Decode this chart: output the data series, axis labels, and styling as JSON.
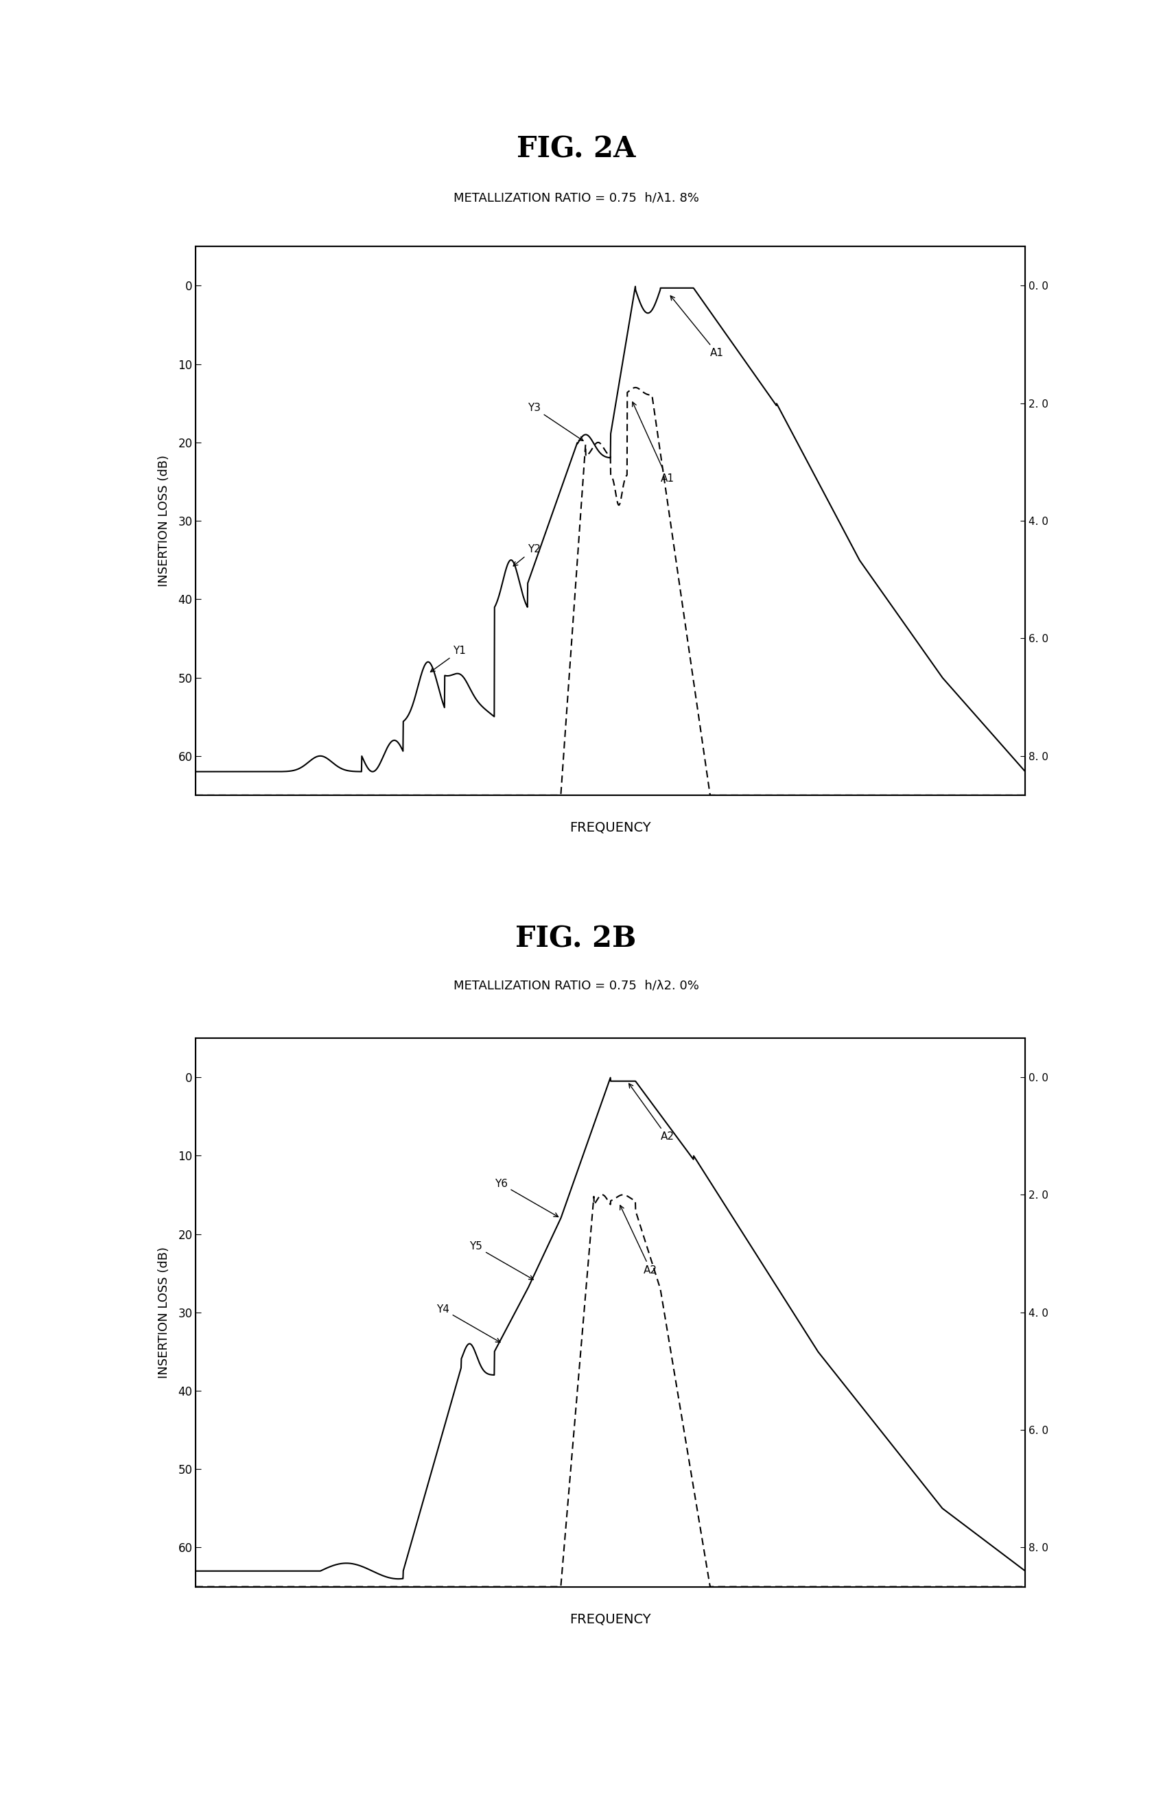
{
  "fig2a_title": "FIG. 2A",
  "fig2b_title": "FIG. 2B",
  "fig2a_subtitle": "METALLIZATION RATIO = 0.75  h/λ1. 8%",
  "fig2b_subtitle": "METALLIZATION RATIO = 0.75  h/λ2. 0%",
  "ylabel": "INSERTION LOSS (dB)",
  "xlabel": "FREQUENCY",
  "yticks_left": [
    0,
    10,
    20,
    30,
    40,
    50,
    60
  ],
  "ytick_labels_left": [
    "0",
    "10",
    "20",
    "30",
    "40",
    "50",
    "60"
  ],
  "yticks_right_pos": [
    0,
    15,
    30,
    45,
    60
  ],
  "ytick_labels_right": [
    "0. 0",
    "2. 0",
    "4. 0",
    "6. 0",
    "8. 0"
  ],
  "ylim": [
    65,
    -5
  ],
  "xlim": [
    0,
    100
  ],
  "bg_color": "#ffffff"
}
